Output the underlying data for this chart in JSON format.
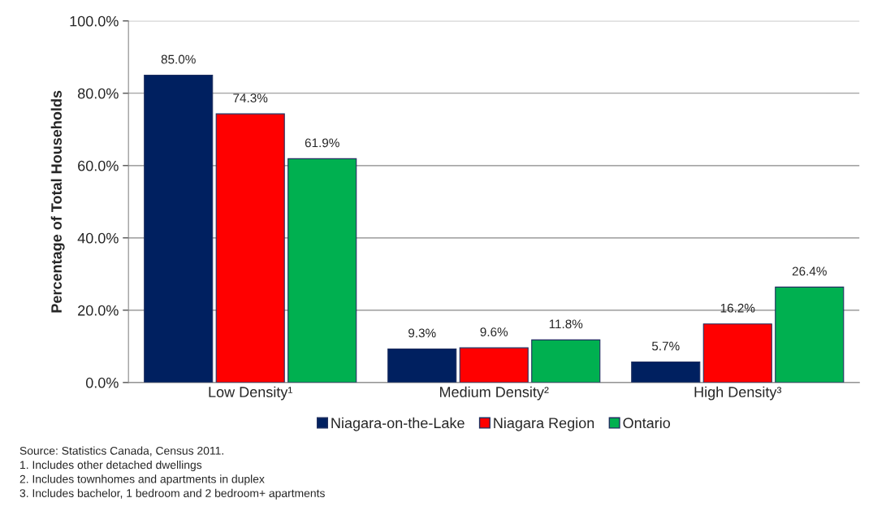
{
  "chart_data": {
    "type": "bar",
    "ylabel": "Percentage of Total Households",
    "categories": [
      "Low Density¹",
      "Medium Density²",
      "High Density³"
    ],
    "series": [
      {
        "name": "Niagara-on-the-Lake",
        "color": "#002060",
        "values": [
          85.0,
          9.3,
          5.7
        ],
        "value_labels": [
          "85.0%",
          "9.3%",
          "5.7%"
        ]
      },
      {
        "name": "Niagara Region",
        "color": "#ff0000",
        "values": [
          74.3,
          9.6,
          16.2
        ],
        "value_labels": [
          "74.3%",
          "9.6%",
          "16.2%"
        ]
      },
      {
        "name": "Ontario",
        "color": "#00b050",
        "values": [
          61.9,
          11.8,
          26.4
        ],
        "value_labels": [
          "61.9%",
          "11.8%",
          "26.4%"
        ]
      }
    ],
    "ylim": [
      0,
      100
    ],
    "yticks": [
      {
        "value": 0,
        "label": "0.0%"
      },
      {
        "value": 20,
        "label": "20.0%"
      },
      {
        "value": 40,
        "label": "40.0%"
      },
      {
        "value": 60,
        "label": "60.0%"
      },
      {
        "value": 80,
        "label": "80.0%"
      },
      {
        "value": 100,
        "label": "100.0%"
      }
    ],
    "grid": "y",
    "legend": "bottom",
    "annotations": [
      "Source: Statistics Canada, Census 2011.",
      "1. Includes other detached dwellings",
      "2. Includes townhomes and apartments in duplex",
      "3. Includes bachelor, 1 bedroom and 2 bedroom+ apartments"
    ]
  }
}
